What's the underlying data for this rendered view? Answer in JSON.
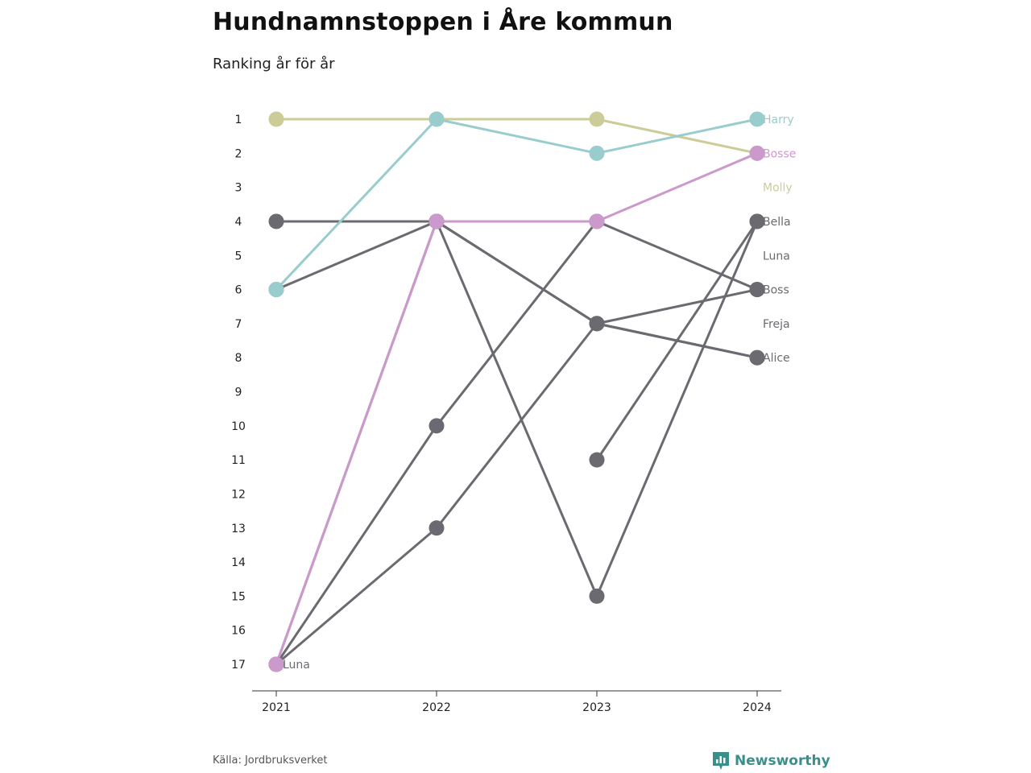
{
  "title": "Hundnamnstoppen i Åre kommun",
  "subtitle": "Ranking år för år",
  "source": "Källa: Jordbruksverket",
  "brand": "Newsworthy",
  "colors": {
    "Harry": "#99cccc",
    "Bosse": "#cc99cc",
    "Molly": "#cccc99",
    "other": "#6b6a70",
    "axis": "#333333",
    "brand": "#3a8f8b"
  },
  "chart_data": {
    "type": "line",
    "x": [
      "2021",
      "2022",
      "2023",
      "2024"
    ],
    "y_ticks": [
      1,
      2,
      3,
      4,
      5,
      6,
      7,
      8,
      9,
      10,
      11,
      12,
      13,
      14,
      15,
      16,
      17
    ],
    "ylim": [
      1,
      17
    ],
    "y_inverted": true,
    "start_labels": [
      {
        "name": "Luna",
        "year": "2021",
        "rank": 17
      }
    ],
    "end_labels": [
      {
        "name": "Harry",
        "rank": 1
      },
      {
        "name": "Bosse",
        "rank": 2
      },
      {
        "name": "Molly",
        "rank": 3
      },
      {
        "name": "Bella",
        "rank": 4
      },
      {
        "name": "Luna",
        "rank": 5
      },
      {
        "name": "Boss",
        "rank": 6
      },
      {
        "name": "Freja",
        "rank": 7
      },
      {
        "name": "Alice",
        "rank": 8
      }
    ],
    "series": [
      {
        "name": "Molly",
        "highlight": true,
        "values": [
          1,
          1,
          1,
          2
        ]
      },
      {
        "name": "Harry",
        "highlight": true,
        "values": [
          6,
          1,
          2,
          1
        ]
      },
      {
        "name": "Bosse",
        "highlight": true,
        "values": [
          17,
          4,
          4,
          2
        ]
      },
      {
        "name": "Bella",
        "highlight": false,
        "values": [
          null,
          null,
          11,
          4
        ]
      },
      {
        "name": "Luna",
        "highlight": false,
        "values": [
          17,
          4,
          15,
          4
        ]
      },
      {
        "name": "Boss",
        "highlight": false,
        "values": [
          17,
          13,
          7,
          6
        ]
      },
      {
        "name": "Alice",
        "highlight": false,
        "values": [
          4,
          4,
          7,
          8
        ]
      },
      {
        "name": "Freja",
        "highlight": false,
        "values": [
          6,
          4,
          7,
          8
        ]
      },
      {
        "name": "",
        "highlight": false,
        "values": [
          17,
          10,
          4,
          6
        ]
      }
    ]
  }
}
